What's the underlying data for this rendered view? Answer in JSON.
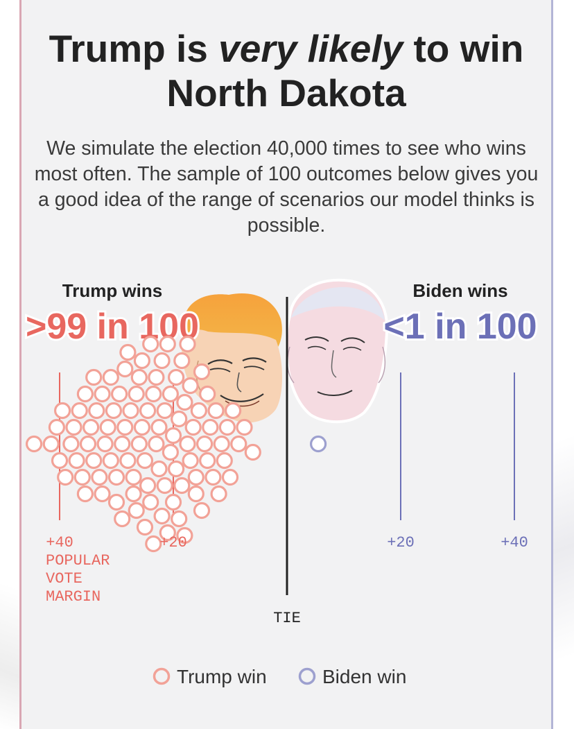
{
  "header": {
    "title_before": "Trump is ",
    "title_emph": "very likely",
    "title_after": " to win",
    "title_line2": "North Dakota",
    "subtitle": "We simulate the election 40,000 times to see who wins most often. The sample of 100 outcomes below gives you a good idea of the range of scenarios our model thinks is possible."
  },
  "summary": {
    "trump_label": "Trump wins",
    "trump_value": ">99 in 100",
    "biden_label": "Biden wins",
    "biden_value": "<1 in 100"
  },
  "legend": {
    "trump": "Trump win",
    "biden": "Biden win"
  },
  "colors": {
    "trump": "#e8675f",
    "trump_dot": "#f2a297",
    "biden": "#6c70b7",
    "biden_dot": "#9da0cf",
    "text": "#222222"
  },
  "chart_data": {
    "type": "scatter",
    "title": "",
    "xlabel": "POPULAR VOTE MARGIN",
    "center_label": "TIE",
    "x_range": [
      -47,
      52
    ],
    "x_ticks": [
      {
        "value": -40,
        "label": "+40"
      },
      {
        "value": -20,
        "label": "+20"
      },
      {
        "value": 20,
        "label": "+20"
      },
      {
        "value": 40,
        "label": "+40"
      }
    ],
    "series": [
      {
        "name": "Trump win",
        "margins": [
          -44.5,
          -41.5,
          -40.5,
          -40.0,
          -39.5,
          -39.0,
          -38.0,
          -37.5,
          -37.0,
          -36.5,
          -36.0,
          -35.5,
          -35.5,
          -35.0,
          -34.5,
          -34.0,
          -34.0,
          -33.5,
          -33.0,
          -32.5,
          -32.5,
          -32.0,
          -31.5,
          -31.0,
          -31.0,
          -30.5,
          -30.0,
          -30.0,
          -29.5,
          -29.0,
          -29.0,
          -28.5,
          -28.5,
          -28.0,
          -28.0,
          -27.5,
          -27.0,
          -27.0,
          -26.5,
          -26.5,
          -26.0,
          -26.0,
          -25.5,
          -25.5,
          -25.0,
          -25.0,
          -24.5,
          -24.5,
          -24.0,
          -24.0,
          -23.5,
          -23.5,
          -23.0,
          -23.0,
          -22.5,
          -22.5,
          -22.0,
          -22.0,
          -21.5,
          -21.5,
          -21.0,
          -21.0,
          -20.5,
          -20.5,
          -20.0,
          -20.0,
          -19.5,
          -19.5,
          -19.0,
          -19.0,
          -18.5,
          -18.5,
          -18.0,
          -18.0,
          -17.5,
          -17.5,
          -17.0,
          -17.0,
          -16.5,
          -16.0,
          -16.0,
          -15.5,
          -15.0,
          -15.0,
          -14.5,
          -14.0,
          -14.0,
          -13.5,
          -13.0,
          -12.5,
          -12.0,
          -11.5,
          -11.0,
          -10.5,
          -10.0,
          -9.5,
          -8.5,
          -7.5,
          -6.0
        ],
        "count": 99
      },
      {
        "name": "Biden win",
        "margins": [
          5.5
        ],
        "count": 1
      }
    ]
  }
}
